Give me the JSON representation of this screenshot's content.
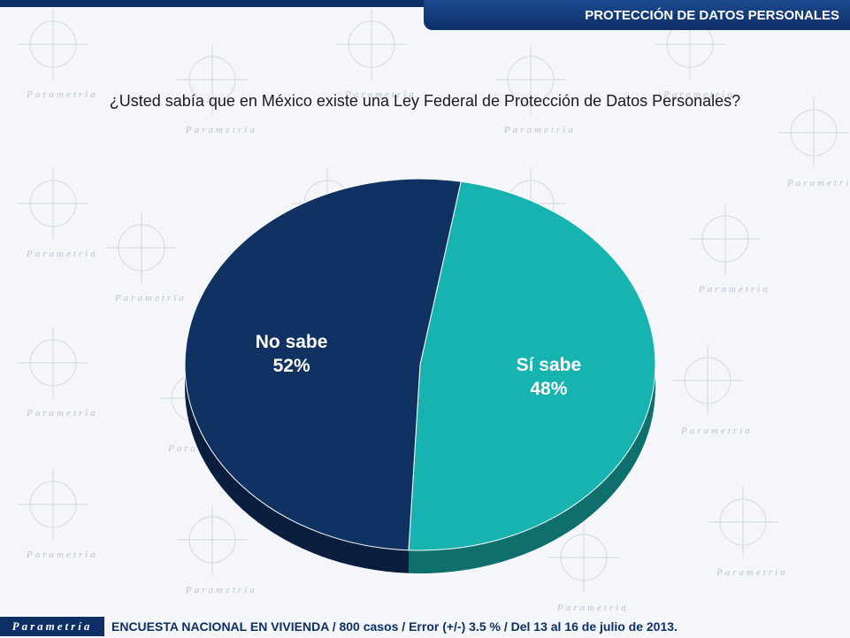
{
  "header": {
    "title": "PROTECCIÓN DE DATOS PERSONALES"
  },
  "question": "¿Usted sabía que en México existe una Ley Federal de Protección de Datos Personales?",
  "chart_data": {
    "type": "pie",
    "labels": [
      "Sí sabe",
      "No sabe"
    ],
    "values": [
      48,
      52
    ],
    "value_labels": [
      "48%",
      "52%"
    ],
    "colors": [
      "#17b3b0",
      "#0f3262"
    ],
    "legend": "none",
    "title": ""
  },
  "footer": {
    "logo": "Parametría",
    "text": "ENCUESTA NACIONAL EN VIVIENDA / 800 casos / Error (+/-) 3.5 % / Del 13 al 16 de julio de 2013."
  },
  "watermark": {
    "text": "Parametria"
  }
}
